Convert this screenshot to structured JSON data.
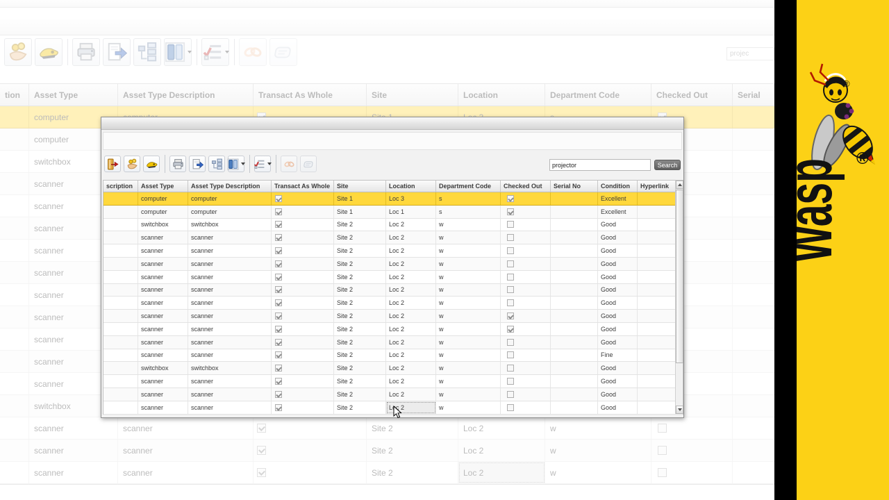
{
  "banner": {
    "brand": "Wasp",
    "registered": "®",
    "bg_color": "#fcd116",
    "strip_color": "#000000"
  },
  "background_window": {
    "search_value": "projec",
    "toolbar": [
      {
        "icon": "hand-coins"
      },
      {
        "icon": "edit-tool"
      },
      {
        "sep": true
      },
      {
        "icon": "printer"
      },
      {
        "icon": "export"
      },
      {
        "icon": "hierarchy"
      },
      {
        "icon": "columns",
        "dropdown": true
      },
      {
        "sep": true
      },
      {
        "icon": "filter-list",
        "dropdown": true
      },
      {
        "sep": true
      },
      {
        "icon": "links",
        "disabled": true
      },
      {
        "icon": "tag",
        "disabled": true
      }
    ],
    "table": {
      "headers": [
        "tion",
        "Asset Type",
        "Asset Type Description",
        "Transact As Whole",
        "Site",
        "Location",
        "Department Code",
        "Checked Out",
        "Serial"
      ]
    }
  },
  "overlay_window": {
    "toolbar": [
      {
        "icon": "door-arrow"
      },
      {
        "icon": "hand-coins"
      },
      {
        "icon": "edit-tool"
      },
      {
        "sep": true
      },
      {
        "icon": "printer"
      },
      {
        "icon": "export"
      },
      {
        "icon": "hierarchy"
      },
      {
        "icon": "columns",
        "dropdown": true
      },
      {
        "sep": true
      },
      {
        "icon": "filter-list",
        "dropdown": true
      },
      {
        "sep": true
      },
      {
        "icon": "links",
        "disabled": true
      },
      {
        "icon": "tag",
        "disabled": true
      }
    ],
    "search": {
      "value": "projector",
      "button_label": "Search"
    },
    "table": {
      "headers": [
        "scription",
        "Asset Type",
        "Asset Type Description",
        "Transact As Whole",
        "Site",
        "Location",
        "Department Code",
        "Checked Out",
        "Serial No",
        "Condition",
        "Hyperlink"
      ]
    }
  },
  "rows": [
    {
      "asset_type": "computer",
      "asset_type_description": "computer",
      "transact_as_whole": true,
      "site": "Site 1",
      "location": "Loc 3",
      "department_code": "s",
      "checked_out": true,
      "serial_no": "",
      "condition": "Excellent",
      "hyperlink": "",
      "selected": true
    },
    {
      "asset_type": "computer",
      "asset_type_description": "computer",
      "transact_as_whole": true,
      "site": "Site 1",
      "location": "Loc 1",
      "department_code": "s",
      "checked_out": true,
      "serial_no": "",
      "condition": "Excellent",
      "hyperlink": ""
    },
    {
      "asset_type": "switchbox",
      "asset_type_description": "switchbox",
      "transact_as_whole": true,
      "site": "Site 2",
      "location": "Loc 2",
      "department_code": "w",
      "checked_out": false,
      "serial_no": "",
      "condition": "Good",
      "hyperlink": ""
    },
    {
      "asset_type": "scanner",
      "asset_type_description": "scanner",
      "transact_as_whole": true,
      "site": "Site 2",
      "location": "Loc 2",
      "department_code": "w",
      "checked_out": false,
      "serial_no": "",
      "condition": "Good",
      "hyperlink": ""
    },
    {
      "asset_type": "scanner",
      "asset_type_description": "scanner",
      "transact_as_whole": true,
      "site": "Site 2",
      "location": "Loc 2",
      "department_code": "w",
      "checked_out": false,
      "serial_no": "",
      "condition": "Good",
      "hyperlink": ""
    },
    {
      "asset_type": "scanner",
      "asset_type_description": "scanner",
      "transact_as_whole": true,
      "site": "Site 2",
      "location": "Loc 2",
      "department_code": "w",
      "checked_out": false,
      "serial_no": "",
      "condition": "Good",
      "hyperlink": ""
    },
    {
      "asset_type": "scanner",
      "asset_type_description": "scanner",
      "transact_as_whole": true,
      "site": "Site 2",
      "location": "Loc 2",
      "department_code": "w",
      "checked_out": false,
      "serial_no": "",
      "condition": "Good",
      "hyperlink": ""
    },
    {
      "asset_type": "scanner",
      "asset_type_description": "scanner",
      "transact_as_whole": true,
      "site": "Site 2",
      "location": "Loc 2",
      "department_code": "w",
      "checked_out": false,
      "serial_no": "",
      "condition": "Good",
      "hyperlink": ""
    },
    {
      "asset_type": "scanner",
      "asset_type_description": "scanner",
      "transact_as_whole": true,
      "site": "Site 2",
      "location": "Loc 2",
      "department_code": "w",
      "checked_out": false,
      "serial_no": "",
      "condition": "Good",
      "hyperlink": ""
    },
    {
      "asset_type": "scanner",
      "asset_type_description": "scanner",
      "transact_as_whole": true,
      "site": "Site 2",
      "location": "Loc 2",
      "department_code": "w",
      "checked_out": true,
      "serial_no": "",
      "condition": "Good",
      "hyperlink": ""
    },
    {
      "asset_type": "scanner",
      "asset_type_description": "scanner",
      "transact_as_whole": true,
      "site": "Site 2",
      "location": "Loc 2",
      "department_code": "w",
      "checked_out": true,
      "serial_no": "",
      "condition": "Good",
      "hyperlink": ""
    },
    {
      "asset_type": "scanner",
      "asset_type_description": "scanner",
      "transact_as_whole": true,
      "site": "Site 2",
      "location": "Loc 2",
      "department_code": "w",
      "checked_out": false,
      "serial_no": "",
      "condition": "Good",
      "hyperlink": ""
    },
    {
      "asset_type": "scanner",
      "asset_type_description": "scanner",
      "transact_as_whole": true,
      "site": "Site 2",
      "location": "Loc 2",
      "department_code": "w",
      "checked_out": false,
      "serial_no": "",
      "condition": "Fine",
      "hyperlink": ""
    },
    {
      "asset_type": "switchbox",
      "asset_type_description": "switchbox",
      "transact_as_whole": true,
      "site": "Site 2",
      "location": "Loc 2",
      "department_code": "w",
      "checked_out": false,
      "serial_no": "",
      "condition": "Good",
      "hyperlink": ""
    },
    {
      "asset_type": "scanner",
      "asset_type_description": "scanner",
      "transact_as_whole": true,
      "site": "Site 2",
      "location": "Loc 2",
      "department_code": "w",
      "checked_out": false,
      "serial_no": "",
      "condition": "Good",
      "hyperlink": ""
    },
    {
      "asset_type": "scanner",
      "asset_type_description": "scanner",
      "transact_as_whole": true,
      "site": "Site 2",
      "location": "Loc 2",
      "department_code": "w",
      "checked_out": false,
      "serial_no": "",
      "condition": "Good",
      "hyperlink": ""
    },
    {
      "asset_type": "scanner",
      "asset_type_description": "scanner",
      "transact_as_whole": true,
      "site": "Site 2",
      "location": "Loc 2",
      "department_code": "w",
      "checked_out": false,
      "serial_no": "",
      "condition": "Good",
      "hyperlink": "",
      "cursor": true
    }
  ]
}
